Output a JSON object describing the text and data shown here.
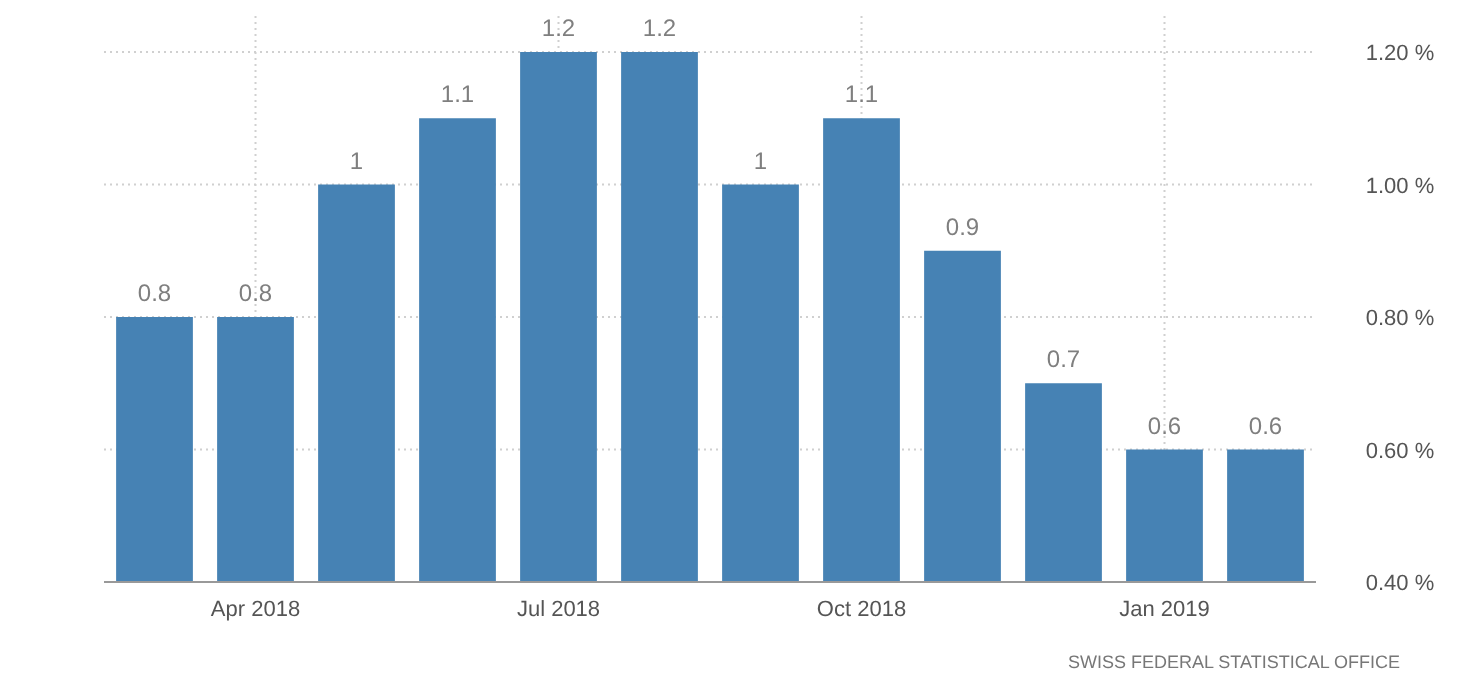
{
  "chart_data": {
    "type": "bar",
    "categories": [
      null,
      "Apr 2018",
      null,
      null,
      "Jul 2018",
      null,
      null,
      "Oct 2018",
      null,
      null,
      "Jan 2019",
      null
    ],
    "values": [
      0.8,
      0.8,
      1,
      1.1,
      1.2,
      1.2,
      1,
      1.1,
      0.9,
      0.7,
      0.6,
      0.6
    ],
    "color": "#4682b4",
    "ylim": [
      0.4,
      1.2
    ],
    "yticks": [
      {
        "value": 0.4,
        "label": "0.40 %"
      },
      {
        "value": 0.6,
        "label": "0.60 %"
      },
      {
        "value": 0.8,
        "label": "0.80 %"
      },
      {
        "value": 1.0,
        "label": "1.00 %"
      },
      {
        "value": 1.2,
        "label": "1.20 %"
      }
    ],
    "grid": true,
    "data_labels": true,
    "annotations": [
      "SWISS FEDERAL STATISTICAL OFFICE"
    ]
  }
}
